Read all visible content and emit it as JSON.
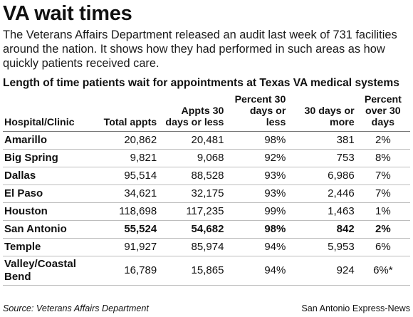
{
  "header": {
    "title": "VA wait times",
    "intro": "The Veterans Affairs Department released an audit last week of 731 facilities around the nation. It shows how they had performed in such areas as how quickly patients received care."
  },
  "chart_data": {
    "type": "table",
    "title": "Length of time patients wait for appointments at Texas VA medical systems",
    "columns": [
      "Hospital/Clinic",
      "Total appts",
      "Appts 30 days or less",
      "Percent 30 days or less",
      "30 days or more",
      "Percent over 30 days"
    ],
    "rows": [
      {
        "name": "Amarillo",
        "values": [
          "20,862",
          "20,481",
          "98%",
          "381",
          "2%"
        ],
        "highlight": false
      },
      {
        "name": "Big Spring",
        "values": [
          "9,821",
          "9,068",
          "92%",
          "753",
          "8%"
        ],
        "highlight": false
      },
      {
        "name": "Dallas",
        "values": [
          "95,514",
          "88,528",
          "93%",
          "6,986",
          "7%"
        ],
        "highlight": false
      },
      {
        "name": "El Paso",
        "values": [
          "34,621",
          "32,175",
          "93%",
          "2,446",
          "7%"
        ],
        "highlight": false
      },
      {
        "name": "Houston",
        "values": [
          "118,698",
          "117,235",
          "99%",
          "1,463",
          "1%"
        ],
        "highlight": false
      },
      {
        "name": "San Antonio",
        "values": [
          "55,524",
          "54,682",
          "98%",
          "842",
          "2%"
        ],
        "highlight": true
      },
      {
        "name": "Temple",
        "values": [
          "91,927",
          "85,974",
          "94%",
          "5,953",
          "6%"
        ],
        "highlight": false
      },
      {
        "name": "Valley/Coastal Bend",
        "values": [
          "16,789",
          "15,865",
          "94%",
          "924",
          "6%*"
        ],
        "highlight": false
      }
    ]
  },
  "footer": {
    "source": "Source: Veterans Affairs Department",
    "credit": "San Antonio Express-News"
  }
}
